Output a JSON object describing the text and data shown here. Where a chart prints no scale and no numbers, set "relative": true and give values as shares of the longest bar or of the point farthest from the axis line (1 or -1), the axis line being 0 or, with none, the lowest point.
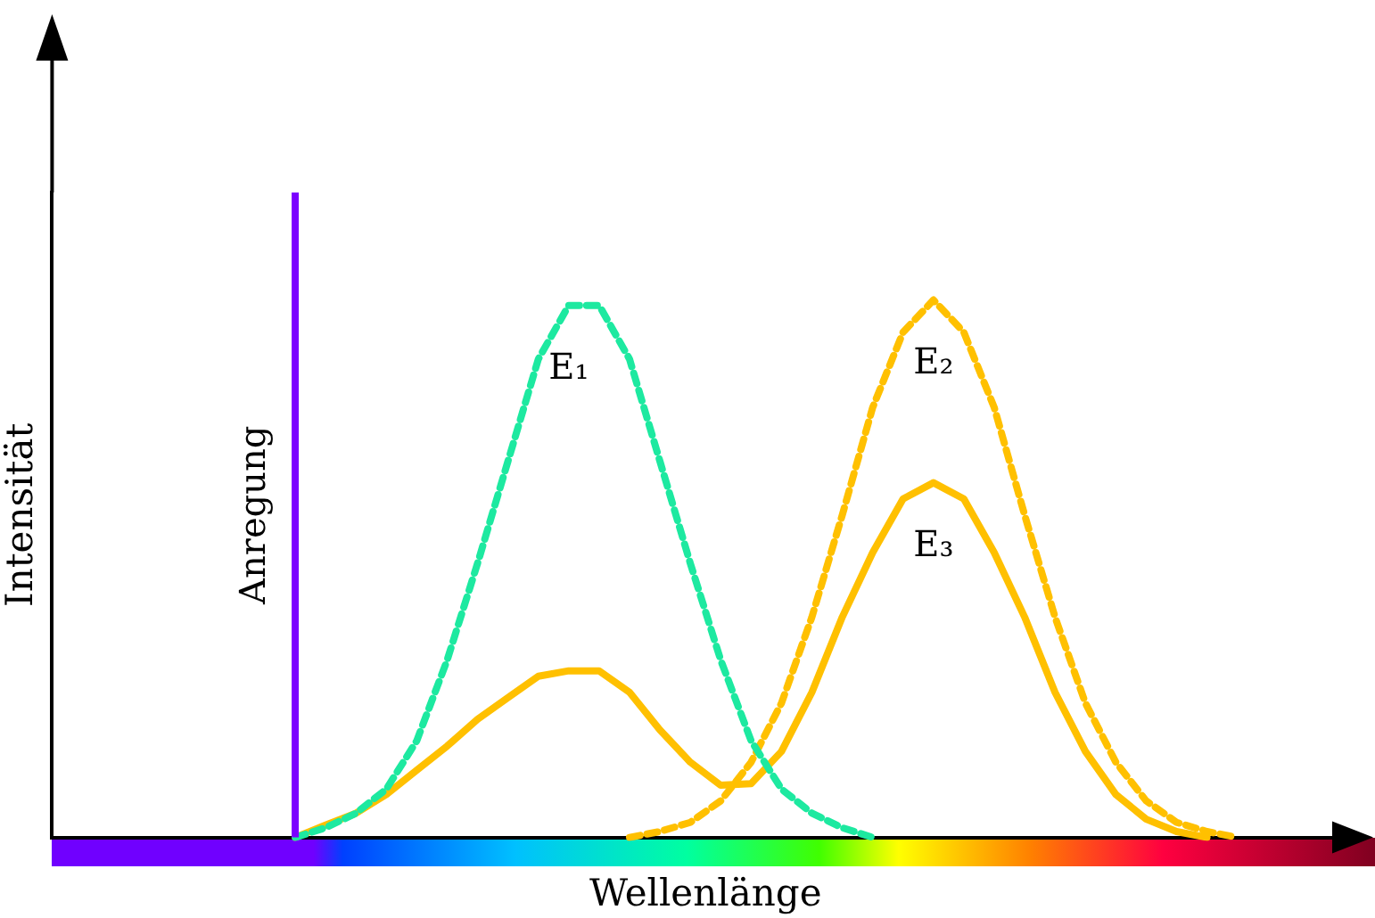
{
  "chart_data": {
    "type": "line",
    "relative": true,
    "xlabel": "Wellenlänge",
    "ylabel": "Intensität",
    "tick_labels": false,
    "marker": "none",
    "categories": [
      null,
      null,
      null,
      null,
      null,
      null,
      null,
      null,
      null,
      null,
      null,
      null,
      null,
      null,
      null,
      null,
      null,
      null,
      null,
      null,
      null,
      null,
      null,
      null,
      null,
      null,
      null,
      null,
      null,
      null,
      null,
      null,
      null,
      null,
      null,
      null,
      null,
      null,
      null,
      null,
      null,
      null,
      null,
      null
    ],
    "annotations": [
      "Anregung"
    ],
    "series": [
      {
        "name": "E₁",
        "line_style": "dashed",
        "color": "#1de9a0",
        "values": [
          null,
          null,
          null,
          null,
          null,
          null,
          null,
          null,
          0,
          0.018,
          0.045,
          0.09,
          0.18,
          0.33,
          0.51,
          0.7,
          0.89,
          0.99,
          0.99,
          0.89,
          0.7,
          0.51,
          0.33,
          0.18,
          0.09,
          0.045,
          0.018,
          0,
          null,
          null,
          null,
          null,
          null,
          null,
          null,
          null,
          null,
          null,
          null,
          null,
          null,
          null,
          null,
          null
        ]
      },
      {
        "name": "E₂",
        "line_style": "dashed",
        "color": "#ffc000",
        "values": [
          null,
          null,
          null,
          null,
          null,
          null,
          null,
          null,
          null,
          null,
          null,
          null,
          null,
          null,
          null,
          null,
          null,
          null,
          null,
          0,
          0.011,
          0.028,
          0.068,
          0.14,
          0.25,
          0.41,
          0.6,
          0.8,
          0.94,
          1,
          0.94,
          0.8,
          0.6,
          0.41,
          0.25,
          0.14,
          0.068,
          0.028,
          0.011,
          0,
          null,
          null,
          null,
          null
        ]
      },
      {
        "name": "E₃",
        "line_style": "solid",
        "color": "#ffc000",
        "values": [
          null,
          null,
          null,
          null,
          null,
          null,
          null,
          null,
          0,
          0.023,
          0.045,
          0.08,
          0.125,
          0.17,
          0.22,
          0.26,
          0.3,
          0.31,
          0.31,
          0.27,
          0.2,
          0.14,
          0.097,
          0.1,
          0.16,
          0.27,
          0.41,
          0.53,
          0.63,
          0.66,
          0.63,
          0.53,
          0.41,
          0.27,
          0.16,
          0.08,
          0.034,
          0.011,
          0,
          null,
          null,
          null,
          null,
          null
        ]
      }
    ]
  }
}
